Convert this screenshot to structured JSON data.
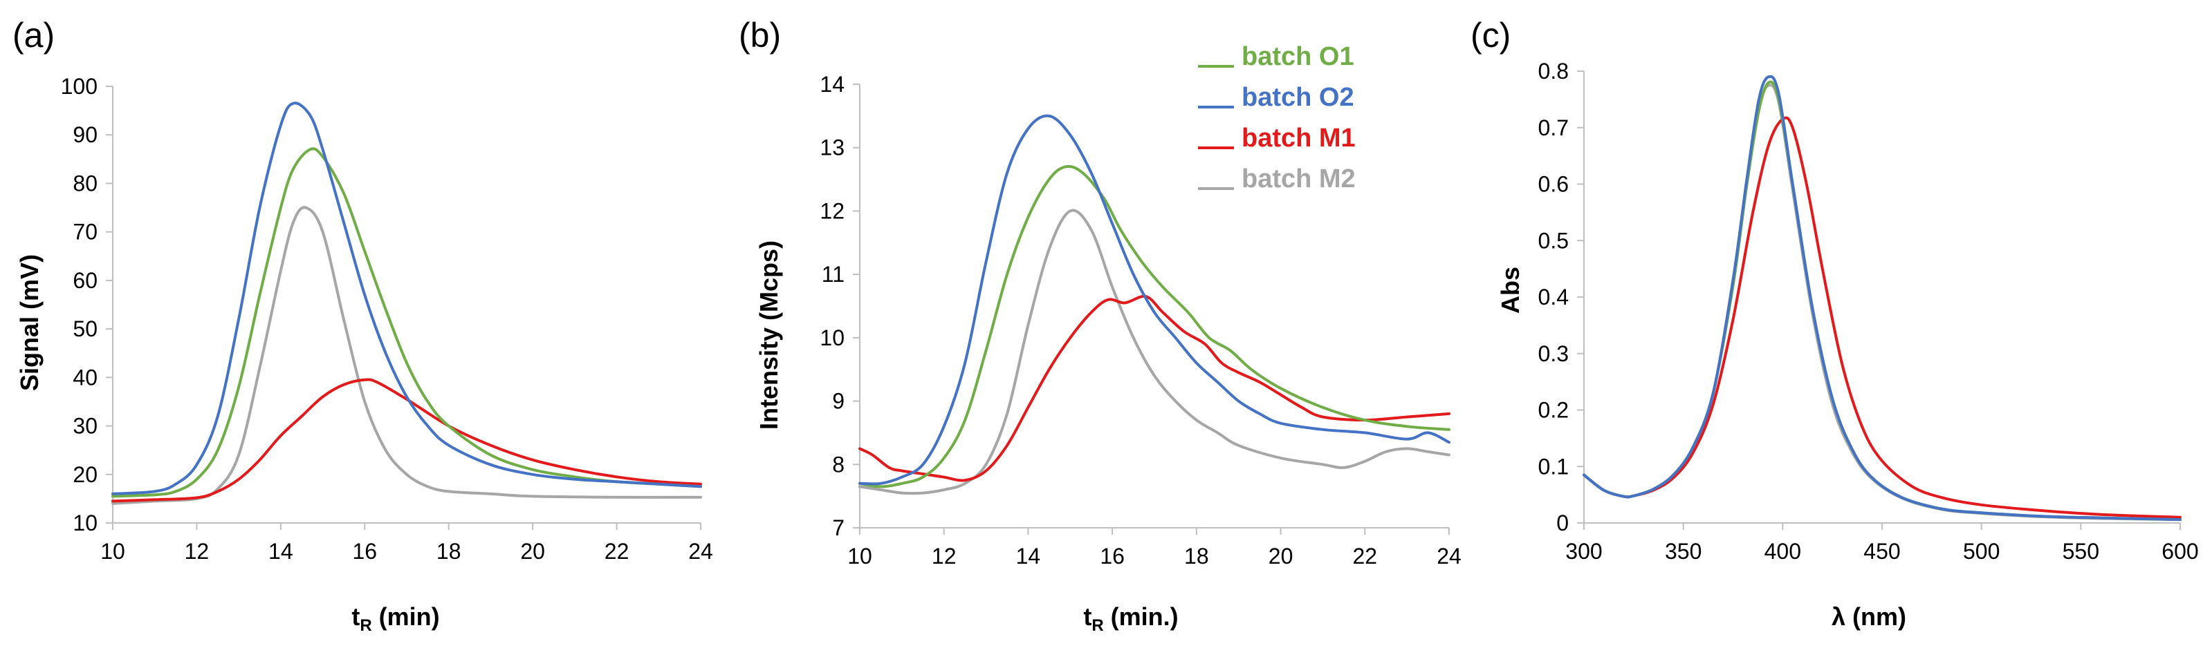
{
  "colors": {
    "batch_O1": "#70ad47",
    "batch_O2": "#4472c4",
    "batch_M1": "#e31a1c",
    "batch_M2": "#a6a6a6",
    "axis": "#bfbfbf"
  },
  "legend": [
    {
      "key": "batch_O1",
      "label": "batch O1"
    },
    {
      "key": "batch_O2",
      "label": "batch O2"
    },
    {
      "key": "batch_M1",
      "label": "batch M1"
    },
    {
      "key": "batch_M2",
      "label": "batch M2"
    }
  ],
  "chart_data": [
    {
      "panel": "(a)",
      "type": "line",
      "xlabel_main": "t",
      "xlabel_sub": "R",
      "xlabel_rest": " (min)",
      "ylabel": "Signal (mV)",
      "xlim": [
        10,
        24
      ],
      "ylim": [
        10,
        100
      ],
      "xticks": [
        10,
        12,
        14,
        16,
        18,
        20,
        22,
        24
      ],
      "yticks": [
        10,
        20,
        30,
        40,
        50,
        60,
        70,
        80,
        90,
        100
      ],
      "series": [
        {
          "key": "batch_O1",
          "name": "batch O1",
          "x": [
            10,
            11,
            11.5,
            12,
            12.5,
            13,
            13.5,
            14,
            14.3,
            14.7,
            15,
            15.5,
            16,
            16.5,
            17,
            17.5,
            18,
            19,
            20,
            21,
            22,
            23,
            24
          ],
          "y": [
            15.5,
            15.8,
            16.5,
            19,
            25,
            38,
            57,
            75,
            83,
            87,
            85.5,
            78,
            66,
            54,
            43,
            35,
            30,
            24,
            21,
            19.5,
            18.5,
            18,
            17.5
          ]
        },
        {
          "key": "batch_O2",
          "name": "batch O2",
          "x": [
            10,
            11,
            11.5,
            12,
            12.5,
            13,
            13.5,
            14,
            14.3,
            14.7,
            15,
            15.5,
            16,
            16.5,
            17,
            17.5,
            18,
            19,
            20,
            21,
            22,
            23,
            24
          ],
          "y": [
            16,
            16.5,
            18,
            22,
            32,
            52,
            75,
            92,
            96.5,
            94,
            87,
            72,
            57,
            45,
            36,
            30,
            26,
            22,
            20,
            19,
            18.5,
            18,
            17.5
          ]
        },
        {
          "key": "batch_M1",
          "name": "batch M1",
          "x": [
            10,
            11,
            12,
            12.5,
            13,
            13.5,
            14,
            14.5,
            15,
            15.5,
            16,
            16.3,
            17,
            18,
            19,
            20,
            21,
            22,
            23,
            24
          ],
          "y": [
            14.5,
            14.8,
            15.2,
            16.5,
            19,
            23,
            28,
            32,
            36,
            38.5,
            39.5,
            39,
            35.5,
            30,
            26,
            23,
            21,
            19.5,
            18.5,
            18
          ]
        },
        {
          "key": "batch_M2",
          "name": "batch M2",
          "x": [
            10,
            11,
            12,
            12.5,
            13,
            13.5,
            14,
            14.3,
            14.6,
            15,
            15.5,
            16,
            16.5,
            17,
            17.5,
            18,
            19,
            20,
            22,
            24
          ],
          "y": [
            14,
            14.5,
            15,
            17,
            24,
            42,
            62,
            72,
            75,
            70,
            52,
            35,
            25,
            20,
            17.5,
            16.5,
            16,
            15.5,
            15.3,
            15.3
          ]
        }
      ]
    },
    {
      "panel": "(b)",
      "type": "line",
      "xlabel_main": "t",
      "xlabel_sub": "R",
      "xlabel_rest": " (min.)",
      "ylabel": "Intensity (Mcps)",
      "xlim": [
        10,
        24
      ],
      "ylim": [
        7,
        14
      ],
      "xticks": [
        10,
        12,
        14,
        16,
        18,
        20,
        22,
        24
      ],
      "yticks": [
        7,
        8,
        9,
        10,
        11,
        12,
        13,
        14
      ],
      "series": [
        {
          "key": "batch_O1",
          "name": "batch O1",
          "x": [
            10,
            10.5,
            11,
            11.5,
            12,
            12.5,
            13,
            13.5,
            14,
            14.5,
            14.9,
            15.3,
            15.8,
            16.2,
            16.7,
            17.2,
            17.8,
            18.3,
            18.8,
            19.3,
            20,
            21,
            22,
            23,
            24
          ],
          "y": [
            7.7,
            7.65,
            7.7,
            7.8,
            8.1,
            8.7,
            9.8,
            11.0,
            11.9,
            12.5,
            12.7,
            12.6,
            12.2,
            11.7,
            11.2,
            10.8,
            10.4,
            10.0,
            9.8,
            9.5,
            9.2,
            8.9,
            8.7,
            8.6,
            8.55
          ]
        },
        {
          "key": "batch_O2",
          "name": "batch O2",
          "x": [
            10,
            10.5,
            11,
            11.5,
            12,
            12.5,
            13,
            13.5,
            14,
            14.5,
            15,
            15.5,
            16,
            16.5,
            17,
            17.5,
            18,
            18.5,
            19,
            19.5,
            20,
            21,
            22,
            23,
            23.5,
            24
          ],
          "y": [
            7.7,
            7.7,
            7.8,
            8.0,
            8.6,
            9.6,
            11.2,
            12.6,
            13.3,
            13.5,
            13.2,
            12.6,
            11.8,
            11.0,
            10.4,
            10.0,
            9.6,
            9.3,
            9.0,
            8.8,
            8.65,
            8.55,
            8.5,
            8.4,
            8.5,
            8.35
          ]
        },
        {
          "key": "batch_M1",
          "name": "batch M1",
          "x": [
            10,
            10.3,
            10.7,
            11,
            11.5,
            12,
            12.5,
            13,
            13.5,
            14,
            14.5,
            15,
            15.5,
            15.9,
            16.3,
            16.8,
            17.2,
            17.7,
            18.2,
            18.6,
            19,
            19.5,
            20,
            20.5,
            21,
            22,
            23,
            24
          ],
          "y": [
            8.25,
            8.15,
            7.95,
            7.9,
            7.85,
            7.8,
            7.75,
            7.9,
            8.3,
            8.9,
            9.5,
            10.0,
            10.4,
            10.6,
            10.55,
            10.65,
            10.4,
            10.1,
            9.9,
            9.6,
            9.45,
            9.3,
            9.1,
            8.9,
            8.75,
            8.7,
            8.75,
            8.8
          ]
        },
        {
          "key": "batch_M2",
          "name": "batch M2",
          "x": [
            10,
            10.5,
            11,
            11.5,
            12,
            12.5,
            13,
            13.5,
            14,
            14.5,
            15,
            15.5,
            16,
            16.5,
            17,
            17.5,
            18,
            18.5,
            19,
            20,
            21,
            21.5,
            22,
            22.5,
            23,
            23.5,
            24
          ],
          "y": [
            7.65,
            7.6,
            7.55,
            7.55,
            7.6,
            7.7,
            8.0,
            8.8,
            10.2,
            11.4,
            12.0,
            11.7,
            10.8,
            10.0,
            9.4,
            9.0,
            8.7,
            8.5,
            8.3,
            8.1,
            8.0,
            7.95,
            8.05,
            8.2,
            8.25,
            8.2,
            8.15
          ]
        }
      ]
    },
    {
      "panel": "(c)",
      "type": "line",
      "xlabel": "λ (nm)",
      "ylabel": "Abs",
      "xlim": [
        300,
        600
      ],
      "ylim": [
        0,
        0.8
      ],
      "xticks": [
        300,
        350,
        400,
        450,
        500,
        550,
        600
      ],
      "yticks": [
        0,
        0.1,
        0.2,
        0.3,
        0.4,
        0.5,
        0.6,
        0.7,
        0.8
      ],
      "ytick_labels": [
        "0",
        "0.1",
        "0.2",
        "0.3",
        "0.4",
        "0.5",
        "0.6",
        "0.7",
        "0.8"
      ],
      "series": [
        {
          "key": "batch_O1",
          "name": "batch O1",
          "x": [
            300,
            310,
            320,
            325,
            335,
            345,
            355,
            365,
            375,
            382,
            388,
            393,
            398,
            405,
            415,
            425,
            435,
            445,
            460,
            480,
            500,
            530,
            560,
            600
          ],
          "y": [
            0.085,
            0.058,
            0.047,
            0.048,
            0.06,
            0.085,
            0.135,
            0.23,
            0.42,
            0.6,
            0.73,
            0.78,
            0.75,
            0.6,
            0.38,
            0.22,
            0.13,
            0.08,
            0.045,
            0.025,
            0.018,
            0.012,
            0.009,
            0.006
          ]
        },
        {
          "key": "batch_O2",
          "name": "batch O2",
          "x": [
            300,
            310,
            320,
            325,
            335,
            345,
            355,
            365,
            375,
            382,
            388,
            393,
            398,
            405,
            415,
            425,
            435,
            445,
            460,
            480,
            500,
            530,
            560,
            600
          ],
          "y": [
            0.085,
            0.058,
            0.047,
            0.048,
            0.06,
            0.085,
            0.135,
            0.23,
            0.43,
            0.61,
            0.75,
            0.79,
            0.76,
            0.6,
            0.38,
            0.22,
            0.13,
            0.08,
            0.045,
            0.025,
            0.018,
            0.012,
            0.009,
            0.006
          ]
        },
        {
          "key": "batch_M1",
          "name": "batch M1",
          "x": [
            300,
            310,
            320,
            325,
            335,
            345,
            355,
            365,
            375,
            385,
            393,
            400,
            405,
            412,
            420,
            430,
            440,
            450,
            465,
            480,
            500,
            530,
            560,
            600
          ],
          "y": [
            0.085,
            0.058,
            0.047,
            0.048,
            0.058,
            0.08,
            0.125,
            0.21,
            0.36,
            0.55,
            0.67,
            0.715,
            0.7,
            0.6,
            0.45,
            0.28,
            0.17,
            0.11,
            0.065,
            0.045,
            0.032,
            0.022,
            0.015,
            0.01
          ]
        },
        {
          "key": "batch_M2",
          "name": "batch M2",
          "x": [
            300,
            310,
            320,
            325,
            335,
            345,
            355,
            365,
            375,
            382,
            388,
            393,
            398,
            405,
            415,
            425,
            435,
            445,
            460,
            480,
            500,
            530,
            560,
            600
          ],
          "y": [
            0.085,
            0.058,
            0.047,
            0.048,
            0.06,
            0.085,
            0.135,
            0.23,
            0.43,
            0.6,
            0.735,
            0.775,
            0.745,
            0.59,
            0.37,
            0.21,
            0.125,
            0.078,
            0.044,
            0.024,
            0.017,
            0.011,
            0.008,
            0.006
          ]
        }
      ]
    }
  ]
}
